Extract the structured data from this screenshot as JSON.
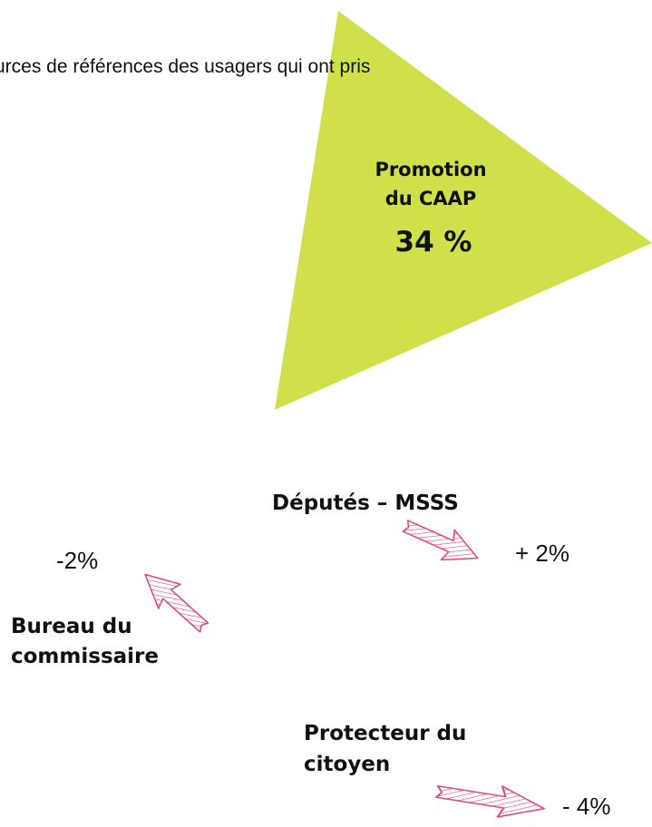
{
  "header": {
    "text": "urces de références des usagers qui ont pris"
  },
  "triangle": {
    "label_lines": [
      "Promotion",
      "du CAAP"
    ],
    "value": "34 %"
  },
  "items": [
    {
      "label_lines": [
        "Députés – MSSS"
      ],
      "change": "+ 2%"
    },
    {
      "label_lines": [
        "Bureau du",
        "commissaire"
      ],
      "change": "-2%"
    },
    {
      "label_lines": [
        "Protecteur du",
        "citoyen"
      ],
      "change": "- 4%"
    }
  ]
}
